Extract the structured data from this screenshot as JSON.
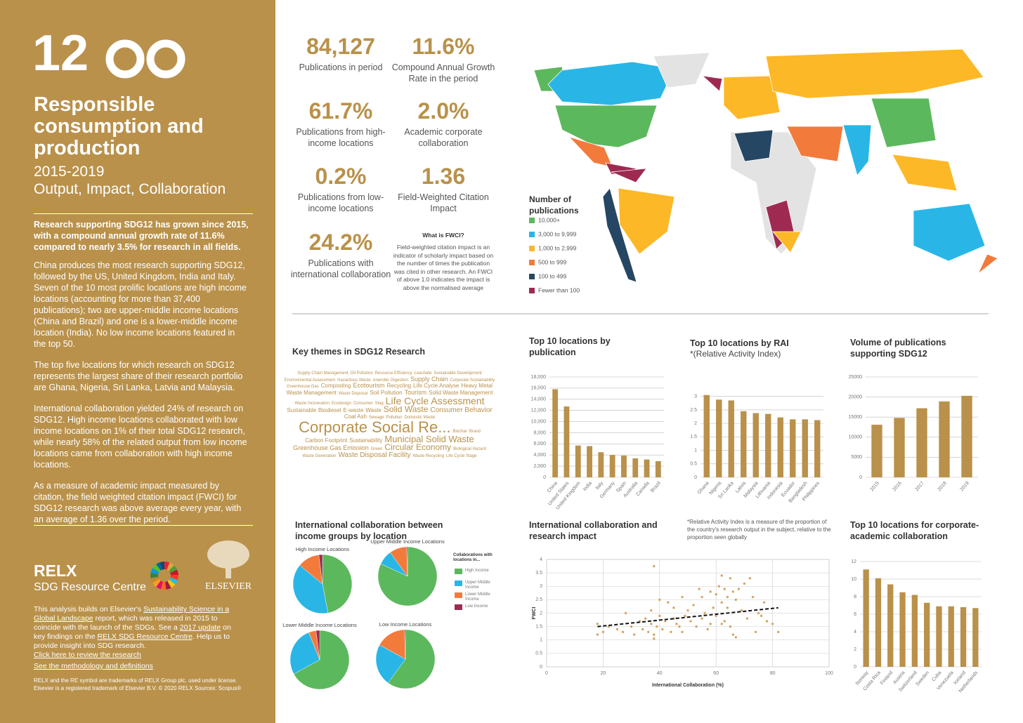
{
  "sidebar": {
    "goal_number": "12",
    "title": "Responsible consumption and production",
    "period": "2015-2019",
    "subtitle": "Output, Impact, Collaboration",
    "lead": "Research supporting SDG12 has grown since 2015, with a compound annual growth rate of 11.6% compared to nearly 3.5% for research in all fields.",
    "paragraphs": [
      "China produces the most research supporting SDG12, followed by the US, United Kingdom, India and Italy. Seven of the 10 most prolific locations are high income locations (accounting for more than 37,400 publications); two are upper-middle income locations (China and Brazil) and one is a lower-middle income location (India). No low income locations featured in the top 50.",
      "The top five locations for which research on SDG12 represents the largest share of their research portfolio are Ghana, Nigeria, Sri Lanka, Latvia and Malaysia.",
      "International collaboration yielded 24% of research on SDG12. High income locations collaborated with low income locations on 1% of their total SDG12 research, while nearly 58% of the related output from low income locations came from collaboration with high income locations.",
      "As a measure of academic impact measured by citation, the field weighted citation impact (FWCI) for SDG12 research was above average every year, with an average of 1.36 over the period."
    ],
    "relx": "RELX",
    "resource_centre": "SDG Resource Centre",
    "elsevier": "ELSEVIER",
    "footer": [
      {
        "text": "This analysis builds on Elsevier's "
      },
      {
        "link": "Sustainability Science in a Global Landscape"
      },
      {
        "text": " report, which was released in 2015 to coincide with the launch of the SDGs. See a "
      },
      {
        "link": "2017 update"
      },
      {
        "text": " on key findings on the "
      },
      {
        "link": "RELX SDG Resource Centre"
      },
      {
        "text": ". Help us to provide insight into SDG research."
      }
    ],
    "links": [
      "Click here to review the research",
      "See the methodology and definitions"
    ],
    "legal": "RELX and the RE symbol are trademarks of RELX Group plc, used under license. Elsevier is a registered trademark of Elsevier B.V. © 2020 RELX Sources: Scopus®"
  },
  "stats": [
    {
      "value": "84,127",
      "label": "Publications in period"
    },
    {
      "value": "11.6%",
      "label": "Compound Annual Growth Rate in the period"
    },
    {
      "value": "61.7%",
      "label": "Publications from high-income locations"
    },
    {
      "value": "2.0%",
      "label": "Academic corporate collaboration"
    },
    {
      "value": "0.2%",
      "label": "Publications from low-income locations"
    },
    {
      "value": "1.36",
      "label": "Field-Weighted Citation Impact"
    },
    {
      "value": "24.2%",
      "label": "Publications with international collaboration"
    }
  ],
  "fwci": {
    "title": "What is FWCI?",
    "text": "Field-weighted citation impact is an indicator of scholarly impact based on the number of times the publication was cited in other research. An FWCI of above 1.0 indicates the impact is above the normalised average"
  },
  "map": {
    "legend_title": "Number of publications",
    "legend": [
      {
        "label": "10,000+",
        "color": "#5cb85c"
      },
      {
        "label": "3,000 to 9,999",
        "color": "#29b6e6"
      },
      {
        "label": "1,000 to 2,999",
        "color": "#fdb827"
      },
      {
        "label": "500 to 999",
        "color": "#f27b3c"
      },
      {
        "label": "100 to 499",
        "color": "#264763"
      },
      {
        "label": "Fewer than 100",
        "color": "#9e2a52"
      }
    ]
  },
  "themes": {
    "title": "Key themes in SDG12 Research",
    "words": [
      "Supply Chain Management",
      "Oil Pollution",
      "Resource Efficiency",
      "Leachate",
      "Sustainable Development",
      "Environmental Assessment",
      "Hazardous Waste",
      "Anerobic Digestion",
      "Supply Chain",
      "Corporate Sustainability",
      "Greenhouse Gas",
      "Composting",
      "Ecotourism",
      "Recycling",
      "Life Cycle Analyse",
      "Heavy Metal",
      "Waste Management",
      "Waste Disposal",
      "Soil Pollution",
      "Tourism",
      "Solid Waste Management",
      "Waste Incineration",
      "Ecodesign",
      "Consumer",
      "Slag",
      "Life Cycle Assessment",
      "Sustainable",
      "Biodiesel",
      "E-waste",
      "Waste",
      "Solid Waste",
      "Consumer Behavior",
      "Coal Ash",
      "Sewage",
      "Pollution",
      "Domestic Waste",
      "Corporate Social Re...",
      "Biochar",
      "Brand",
      "Carbon Footprint",
      "Sustainability",
      "Municipal Solid Waste",
      "Greenhouse Gas Emission",
      "Green",
      "Circular Economy",
      "Biological Hazard",
      "Waste Generation",
      "Waste Disposal Facility",
      "Waste Recycling",
      "Life Cycle Stage"
    ]
  },
  "chart_data": [
    {
      "type": "bar",
      "title": "Top 10 locations by publication",
      "categories": [
        "China",
        "United States",
        "United Kingdom",
        "India",
        "Italy",
        "Germany",
        "Spain",
        "Australia",
        "Canada",
        "Brazil"
      ],
      "values": [
        15800,
        12700,
        5700,
        5600,
        4500,
        4000,
        3900,
        3400,
        3200,
        2900
      ],
      "color": "#b9914b",
      "ylim": [
        0,
        18000
      ],
      "yticks": [
        0,
        {
          "value": 2000,
          "label": "2,000"
        },
        {
          "value": 4000,
          "label": "4,000"
        },
        {
          "value": 6000,
          "label": "6,000"
        },
        {
          "value": 8000,
          "label": "8,000"
        },
        {
          "value": 10000,
          "label": "10,000"
        },
        {
          "value": 12000,
          "label": "12,000"
        },
        {
          "value": 14000,
          "label": "14,000"
        },
        {
          "value": 16000,
          "label": "16,000"
        },
        {
          "value": 18000,
          "label": "18,000"
        }
      ],
      "grid": true
    },
    {
      "type": "bar",
      "title": "Top 10 locations by RAI",
      "subtitle": "*(Relative Activity Index)",
      "note": "*Relative Activity Index is a measure of the proportion of the country's research output in the subject, relative to the proportion seen globally",
      "categories": [
        "Ghana",
        "Nigeria",
        "Sri Lanka",
        "Latvia",
        "Malaysia",
        "Lithuania",
        "Indonesia",
        "Ecuador",
        "Bangladesh",
        "Philippines"
      ],
      "values": [
        3.05,
        2.88,
        2.85,
        2.45,
        2.38,
        2.35,
        2.22,
        2.15,
        2.15,
        2.12
      ],
      "color": "#b9914b",
      "ylim": [
        0,
        3.2
      ],
      "yticks": [
        0,
        0.5,
        1,
        1.5,
        2,
        2.5,
        3
      ],
      "grid": true
    },
    {
      "type": "bar",
      "title": "Volume of publications supporting SDG12",
      "categories": [
        "2015",
        "2016",
        "2017",
        "2018",
        "2019"
      ],
      "values": [
        13100,
        14800,
        17200,
        18900,
        20300
      ],
      "color": "#b9914b",
      "ylim": [
        0,
        25000
      ],
      "yticks": [
        0,
        5000,
        10000,
        15000,
        20000,
        25000
      ],
      "grid": true
    },
    {
      "type": "pie",
      "title": "International collaboration between income groups by location",
      "legend_title": "Collaborations with locations in...",
      "categories": [
        "High Income",
        "Upper Middle Income",
        "Lower Middle Income",
        "Low Income"
      ],
      "colors": [
        "#5cb85c",
        "#29b6e6",
        "#f27b3c",
        "#9e2a52"
      ],
      "series": [
        {
          "name": "High Income Locations",
          "values": [
            47,
            39,
            12,
            2
          ]
        },
        {
          "name": "Upper Middle Income Locations",
          "values": [
            82,
            8,
            9.5,
            0.5
          ]
        },
        {
          "name": "Lower Middle Income Locations",
          "values": [
            67,
            27,
            4,
            2
          ]
        },
        {
          "name": "Low Income Locations",
          "values": [
            60,
            23,
            16.5,
            0.5
          ]
        }
      ]
    },
    {
      "type": "scatter",
      "title": "International collaboration and research impact",
      "xlabel": "International Collaboration (%)",
      "ylabel": "FWCI",
      "color": "#d4a66a",
      "x": [
        18,
        18,
        20,
        22,
        25,
        27,
        28,
        30,
        31,
        33,
        34,
        35,
        36,
        37,
        37,
        38,
        38,
        39,
        40,
        40,
        41,
        42,
        43,
        44,
        45,
        45,
        46,
        47,
        48,
        48,
        49,
        50,
        51,
        52,
        53,
        54,
        55,
        55,
        56,
        57,
        58,
        58,
        59,
        60,
        60,
        61,
        62,
        62,
        63,
        63,
        64,
        64,
        65,
        65,
        66,
        66,
        67,
        67,
        68,
        69,
        70,
        71,
        72,
        73,
        74,
        75,
        76,
        77,
        78,
        80,
        82,
        38,
        62
      ],
      "values": [
        1.2,
        1.6,
        1.3,
        1.5,
        1.4,
        1.3,
        2.0,
        1.5,
        1.2,
        1.7,
        1.4,
        1.8,
        1.3,
        2.1,
        1.6,
        1.2,
        3.75,
        1.5,
        1.9,
        2.5,
        1.4,
        1.7,
        2.4,
        1.3,
        1.8,
        2.2,
        1.6,
        1.5,
        2.6,
        1.3,
        1.9,
        2.1,
        1.7,
        2.3,
        1.5,
        2.9,
        1.8,
        2.6,
        2.0,
        1.4,
        2.8,
        1.6,
        2.2,
        2.7,
        1.9,
        3.0,
        2.4,
        1.6,
        2.9,
        1.7,
        2.6,
        2.2,
        3.3,
        1.5,
        2.8,
        1.2,
        2.5,
        1.1,
        2.9,
        2.1,
        3.1,
        1.8,
        3.3,
        2.6,
        1.3,
        2.0,
        1.9,
        2.4,
        1.7,
        1.6,
        1.3,
        1.05,
        3.4
      ],
      "trendline": {
        "x": [
          18,
          82
        ],
        "values": [
          1.5,
          2.2
        ]
      },
      "xlim": [
        0,
        100
      ],
      "xticks": [
        0,
        20,
        40,
        60,
        80,
        100
      ],
      "ylim": [
        0,
        4
      ],
      "yticks": [
        0,
        0.5,
        1,
        1.5,
        2,
        2.5,
        3,
        3.5,
        4
      ],
      "grid": true
    },
    {
      "type": "bar",
      "title": "Top 10 locations for corporate-academic collaboration",
      "categories": [
        "Norway",
        "Costa Rica",
        "Finland",
        "Austria",
        "Switzerland",
        "Sweden",
        "Cuba",
        "Venezuela",
        "Iceland",
        "Netherlands"
      ],
      "values": [
        11.1,
        10.1,
        9.4,
        8.5,
        8.2,
        7.3,
        6.9,
        6.9,
        6.8,
        6.7
      ],
      "color": "#b9914b",
      "ylim": [
        0,
        12
      ],
      "yticks": [
        0,
        2,
        4,
        6,
        8,
        10,
        12
      ],
      "grid": true
    }
  ]
}
